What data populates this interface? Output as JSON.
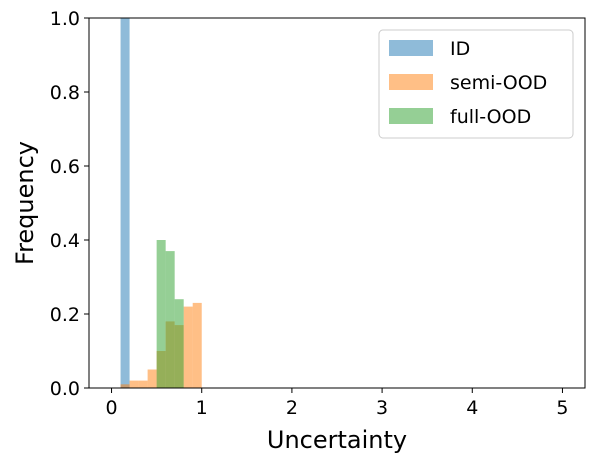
{
  "chart_data": {
    "type": "bar",
    "title": "",
    "xlabel": "Uncertainty",
    "ylabel": "Frequency",
    "xlim": [
      -0.25,
      5.25
    ],
    "ylim": [
      0,
      1.0
    ],
    "x_ticks": [
      0,
      1,
      2,
      3,
      4,
      5
    ],
    "y_ticks": [
      0.0,
      0.2,
      0.4,
      0.6,
      0.8,
      1.0
    ],
    "x_tick_labels": [
      "0",
      "1",
      "2",
      "3",
      "4",
      "5"
    ],
    "y_tick_labels": [
      "0.0",
      "0.2",
      "0.4",
      "0.6",
      "0.8",
      "1.0"
    ],
    "grid": false,
    "legend_position": "top-right",
    "bin_width": 0.1,
    "series": [
      {
        "name": "ID",
        "color": "#1f77b4",
        "bins": [
          {
            "x": 0.1,
            "value": 1.0
          }
        ]
      },
      {
        "name": "semi-OOD",
        "color": "#ff7f0e",
        "bins": [
          {
            "x": 0.1,
            "value": 0.01
          },
          {
            "x": 0.2,
            "value": 0.02
          },
          {
            "x": 0.3,
            "value": 0.02
          },
          {
            "x": 0.4,
            "value": 0.05
          },
          {
            "x": 0.5,
            "value": 0.1
          },
          {
            "x": 0.6,
            "value": 0.18
          },
          {
            "x": 0.7,
            "value": 0.17
          },
          {
            "x": 0.8,
            "value": 0.22
          },
          {
            "x": 0.9,
            "value": 0.23
          }
        ]
      },
      {
        "name": "full-OOD",
        "color": "#2ca02c",
        "bins": [
          {
            "x": 0.5,
            "value": 0.4
          },
          {
            "x": 0.6,
            "value": 0.37
          },
          {
            "x": 0.7,
            "value": 0.24
          }
        ]
      }
    ]
  }
}
